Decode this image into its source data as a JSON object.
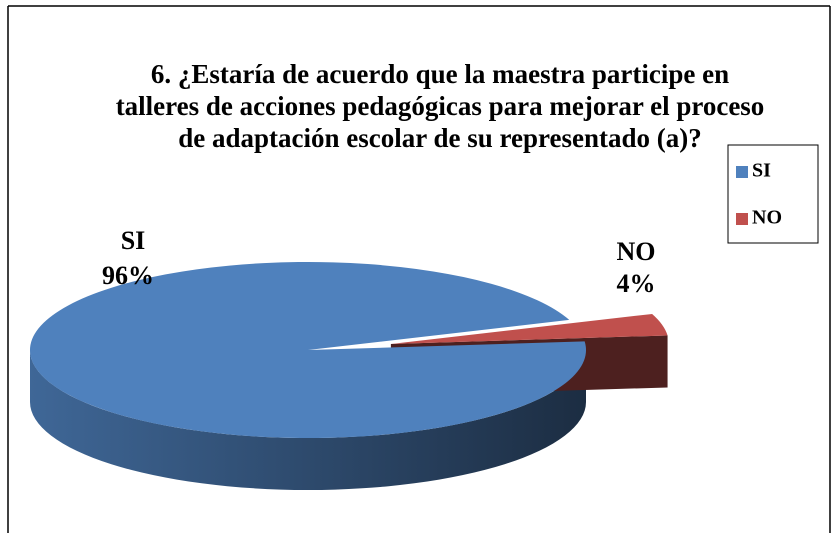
{
  "chart_data": {
    "type": "pie3d",
    "title": "6. ¿Estaría de acuerdo que la maestra participe en talleres de acciones pedagógicas para mejorar el proceso de adaptación escolar de su representado (a)?",
    "categories": [
      "SI",
      "NO"
    ],
    "values": [
      96,
      4
    ],
    "value_labels": [
      "96%",
      "4%"
    ],
    "series": [
      {
        "name": "SI",
        "color": "#4f81bd"
      },
      {
        "name": "NO",
        "color": "#c0504d"
      }
    ],
    "legend": "right"
  }
}
